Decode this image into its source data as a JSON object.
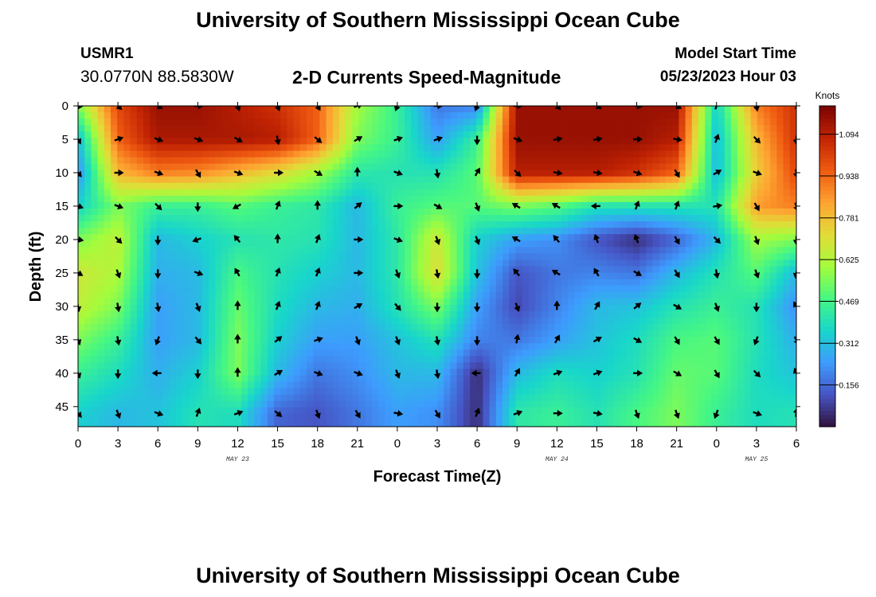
{
  "page": {
    "title_top": "University of Southern Mississippi Ocean Cube",
    "title_bottom": "University of Southern Mississippi Ocean Cube"
  },
  "station": {
    "id": "USMR1",
    "coords": "30.0770N  88.5830W"
  },
  "model": {
    "label": "Model Start Time",
    "time": "05/23/2023 Hour 03"
  },
  "chart_data": {
    "type": "heatmap",
    "title": "2-D Currents Speed-Magnitude",
    "xlabel": "Forecast Time(Z)",
    "ylabel": "Depth (ft)",
    "x_ticks": [
      "0",
      "3",
      "6",
      "9",
      "12",
      "15",
      "18",
      "21",
      "0",
      "3",
      "6",
      "9",
      "12",
      "15",
      "18",
      "21",
      "0",
      "3",
      "6"
    ],
    "x_range_hours": [
      0,
      54
    ],
    "date_labels": [
      {
        "hour": 12,
        "label": "MAY 23"
      },
      {
        "hour": 36,
        "label": "MAY 24"
      },
      {
        "hour": 51,
        "label": "MAY 25"
      }
    ],
    "y_ticks": [
      0,
      5,
      10,
      15,
      20,
      25,
      30,
      35,
      40,
      45
    ],
    "y_range_ft": [
      0,
      48
    ],
    "y_inverted": true,
    "colorbar": {
      "label": "Knots",
      "ticks": [
        "1.094",
        "0.938",
        "0.781",
        "0.625",
        "0.469",
        "0.312",
        "0.156"
      ],
      "tick_values": [
        1.094,
        0.938,
        0.781,
        0.625,
        0.469,
        0.312,
        0.156
      ],
      "range": [
        0.0,
        1.2
      ],
      "colormap": "turbo"
    },
    "grid_x_hours": [
      0,
      3,
      6,
      9,
      12,
      15,
      18,
      21,
      24,
      27,
      30,
      33,
      36,
      39,
      42,
      45,
      48,
      51,
      54
    ],
    "grid_depth_ft": [
      0,
      5,
      10,
      15,
      20,
      25,
      30,
      35,
      40,
      46
    ],
    "speed_knots": [
      [
        0.55,
        1.0,
        1.15,
        1.15,
        1.1,
        1.05,
        0.95,
        0.6,
        0.45,
        0.18,
        0.2,
        1.15,
        1.15,
        1.15,
        1.15,
        1.15,
        0.35,
        0.9,
        1.05
      ],
      [
        0.3,
        0.95,
        1.12,
        1.12,
        1.12,
        1.1,
        0.95,
        0.55,
        0.45,
        0.25,
        0.45,
        1.15,
        1.15,
        1.15,
        1.15,
        1.1,
        0.3,
        0.8,
        1.05
      ],
      [
        0.22,
        0.8,
        0.9,
        0.88,
        0.8,
        0.72,
        0.6,
        0.42,
        0.4,
        0.4,
        0.5,
        1.1,
        1.1,
        1.1,
        1.05,
        0.95,
        0.3,
        0.75,
        1.0
      ],
      [
        0.35,
        0.55,
        0.45,
        0.45,
        0.5,
        0.45,
        0.42,
        0.3,
        0.45,
        0.5,
        0.5,
        0.55,
        0.5,
        0.4,
        0.4,
        0.4,
        0.4,
        0.85,
        0.9
      ],
      [
        0.55,
        0.65,
        0.3,
        0.35,
        0.4,
        0.42,
        0.4,
        0.3,
        0.42,
        0.68,
        0.35,
        0.25,
        0.22,
        0.12,
        0.05,
        0.15,
        0.3,
        0.6,
        0.55
      ],
      [
        0.68,
        0.62,
        0.28,
        0.3,
        0.48,
        0.4,
        0.35,
        0.3,
        0.42,
        0.72,
        0.32,
        0.12,
        0.18,
        0.2,
        0.18,
        0.3,
        0.4,
        0.5,
        0.3
      ],
      [
        0.65,
        0.55,
        0.25,
        0.3,
        0.52,
        0.38,
        0.3,
        0.28,
        0.4,
        0.55,
        0.25,
        0.1,
        0.2,
        0.3,
        0.32,
        0.4,
        0.45,
        0.4,
        0.22
      ],
      [
        0.55,
        0.45,
        0.25,
        0.3,
        0.55,
        0.35,
        0.25,
        0.25,
        0.32,
        0.4,
        0.2,
        0.18,
        0.25,
        0.32,
        0.38,
        0.48,
        0.5,
        0.4,
        0.28
      ],
      [
        0.45,
        0.38,
        0.28,
        0.35,
        0.55,
        0.3,
        0.18,
        0.22,
        0.3,
        0.3,
        0.05,
        0.3,
        0.38,
        0.35,
        0.4,
        0.52,
        0.5,
        0.38,
        0.32
      ],
      [
        0.35,
        0.3,
        0.32,
        0.4,
        0.38,
        0.15,
        0.12,
        0.18,
        0.25,
        0.22,
        0.05,
        0.42,
        0.45,
        0.4,
        0.48,
        0.55,
        0.45,
        0.38,
        0.4
      ]
    ],
    "vector_x_hours": [
      0,
      3,
      6,
      9,
      12,
      15,
      18,
      21,
      24,
      27,
      30,
      33,
      36,
      39,
      42,
      45,
      48,
      51,
      54
    ],
    "vector_depth_ft": [
      0,
      5,
      10,
      15,
      20,
      25,
      30,
      35,
      40,
      46
    ],
    "vector_dir_deg": [
      [
        90,
        135,
        120,
        90,
        160,
        160,
        150,
        70,
        200,
        90,
        200,
        90,
        135,
        120,
        100,
        120,
        20,
        170,
        135
      ],
      [
        150,
        70,
        110,
        110,
        120,
        170,
        130,
        60,
        70,
        70,
        180,
        110,
        80,
        80,
        90,
        100,
        20,
        135,
        180
      ],
      [
        140,
        90,
        110,
        150,
        110,
        90,
        120,
        0,
        110,
        170,
        30,
        135,
        100,
        100,
        110,
        150,
        60,
        110,
        170
      ],
      [
        110,
        110,
        135,
        180,
        240,
        20,
        0,
        50,
        90,
        120,
        160,
        300,
        300,
        270,
        20,
        20,
        80,
        150,
        160
      ],
      [
        100,
        135,
        180,
        250,
        320,
        0,
        20,
        90,
        110,
        160,
        160,
        300,
        320,
        340,
        340,
        150,
        135,
        160,
        180
      ],
      [
        120,
        160,
        180,
        110,
        330,
        20,
        20,
        90,
        160,
        170,
        180,
        320,
        300,
        330,
        120,
        150,
        170,
        160,
        190
      ],
      [
        170,
        170,
        170,
        160,
        0,
        20,
        20,
        60,
        140,
        180,
        180,
        160,
        0,
        30,
        50,
        120,
        160,
        180,
        330
      ],
      [
        160,
        170,
        200,
        140,
        0,
        50,
        70,
        160,
        160,
        170,
        180,
        10,
        30,
        60,
        120,
        150,
        150,
        200,
        150
      ],
      [
        160,
        180,
        270,
        180,
        0,
        60,
        110,
        110,
        160,
        170,
        270,
        30,
        70,
        70,
        90,
        120,
        150,
        135,
        340
      ],
      [
        140,
        160,
        110,
        20,
        70,
        130,
        160,
        150,
        100,
        150,
        20,
        70,
        90,
        100,
        160,
        160,
        200,
        110,
        10
      ]
    ]
  }
}
